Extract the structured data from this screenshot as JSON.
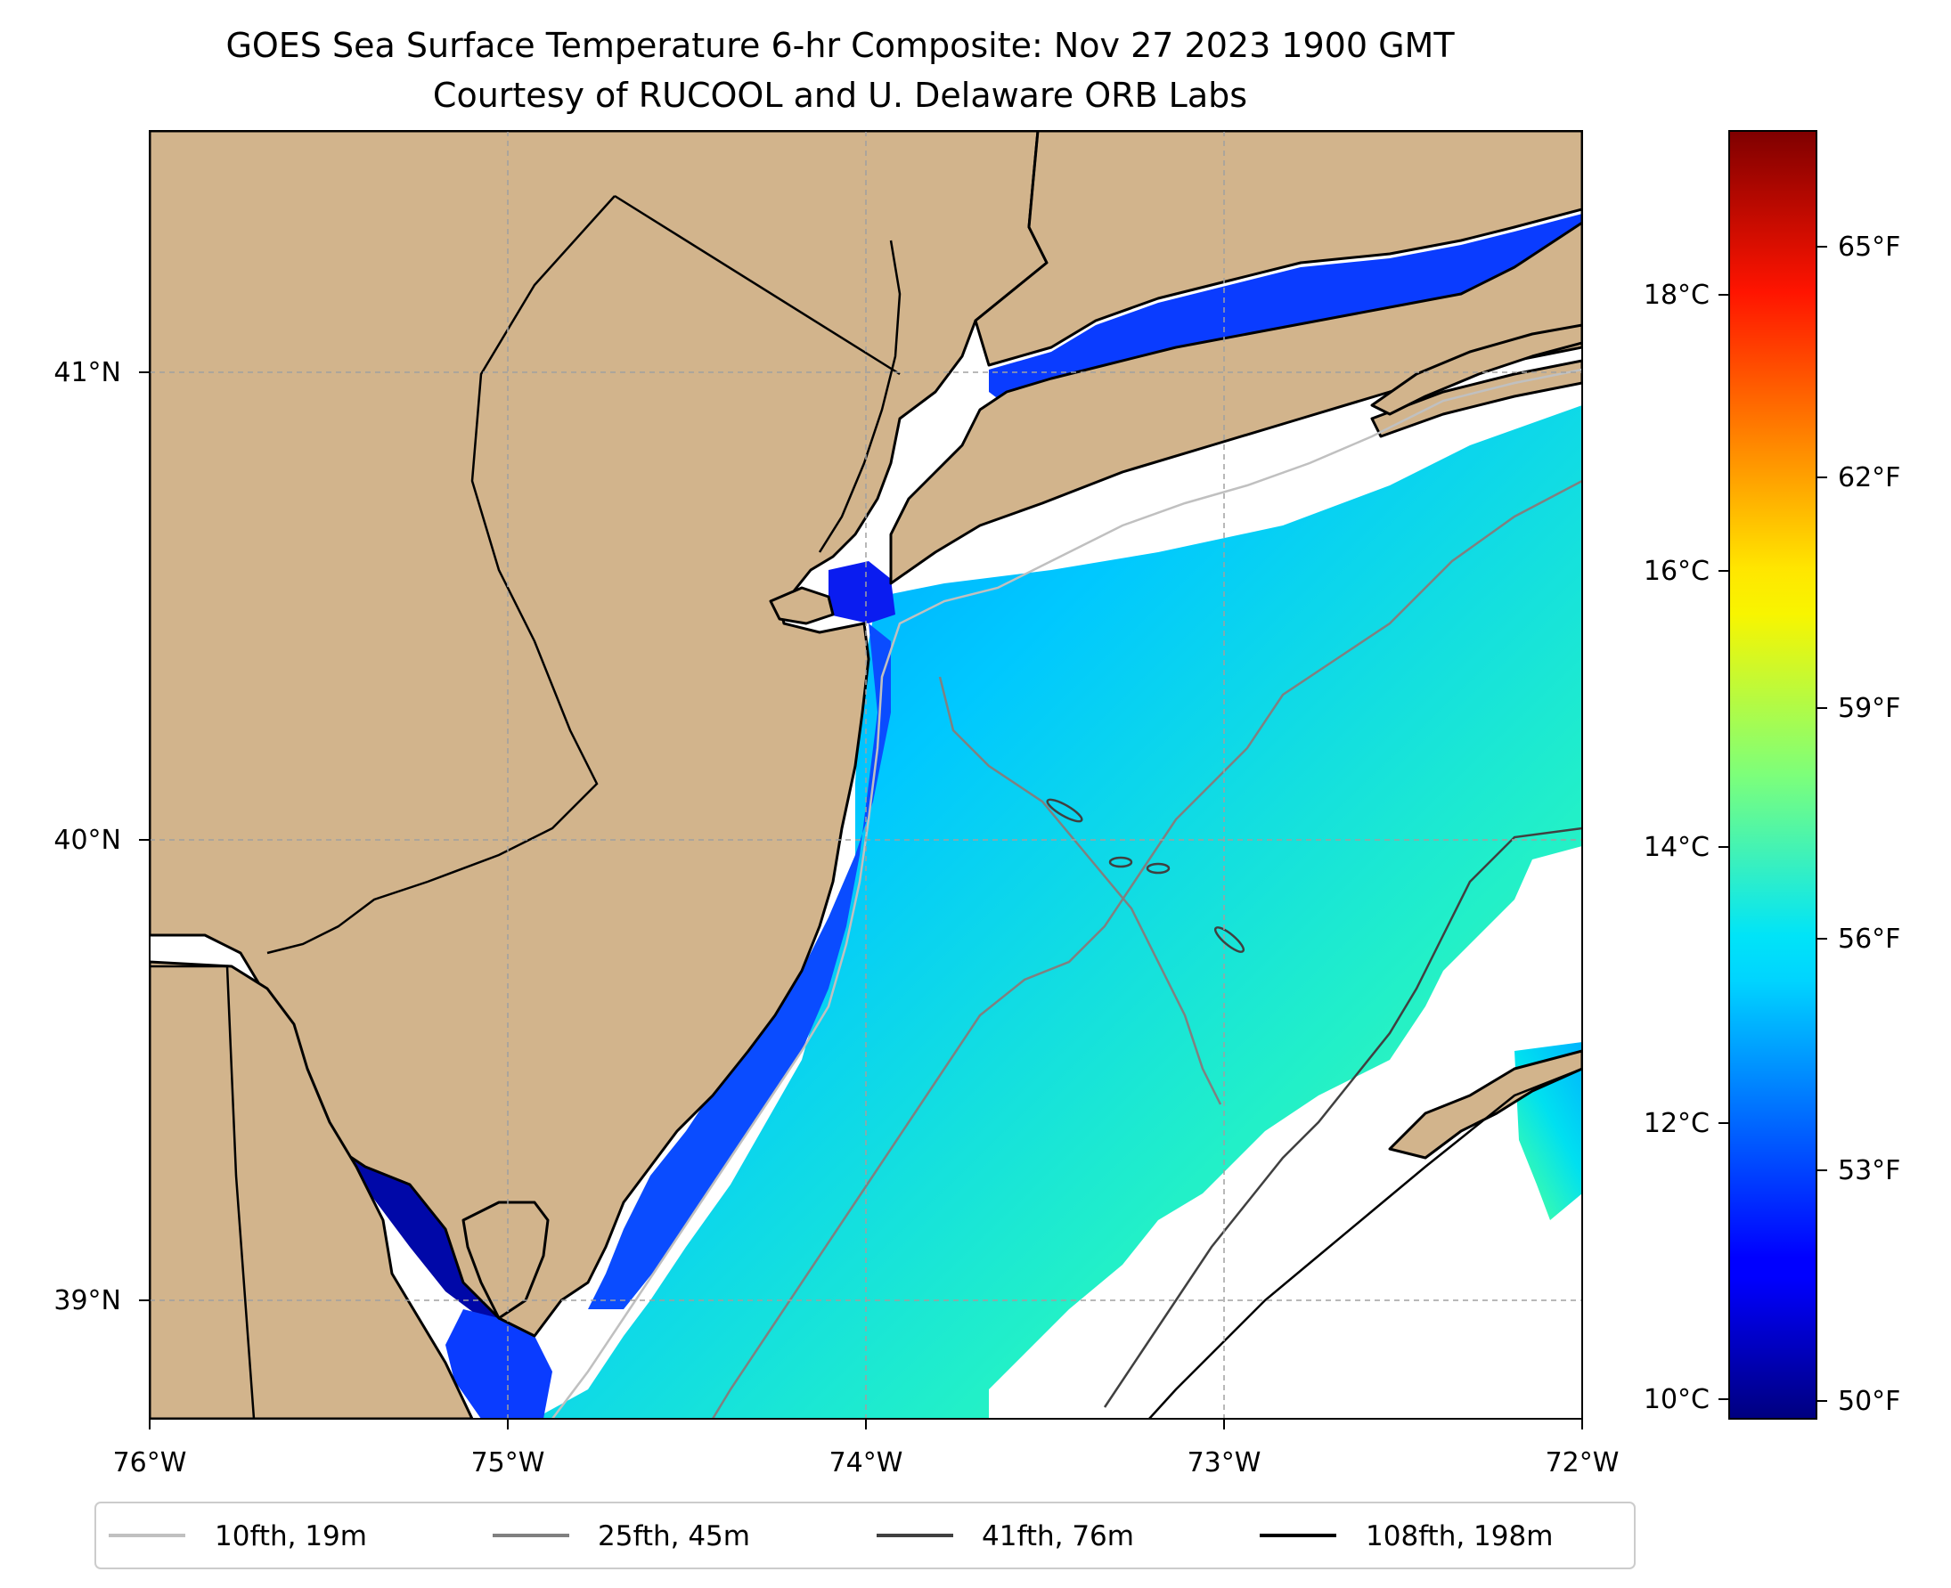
{
  "title": {
    "line1": "GOES Sea Surface Temperature 6-hr Composite: Nov 27 2023 1900 GMT",
    "line2": "Courtesy of RUCOOL and U. Delaware ORB Labs"
  },
  "map": {
    "lon_range": [
      -76,
      -72
    ],
    "lat_range": [
      38.75,
      41.5
    ],
    "x_ticks": [
      "76°W",
      "75°W",
      "74°W",
      "73°W",
      "72°W"
    ],
    "y_ticks": [
      "39°N",
      "40°N",
      "41°N"
    ],
    "land_color": "#d2b48c",
    "gridlines": true
  },
  "colorbar": {
    "colormap": "jet",
    "celsius_ticks": [
      "10°C",
      "12°C",
      "14°C",
      "16°C",
      "18°C"
    ],
    "fahrenheit_ticks": [
      "50°F",
      "53°F",
      "56°F",
      "59°F",
      "62°F",
      "65°F"
    ],
    "range_celsius": [
      9.7,
      19.2
    ],
    "range_fahrenheit": [
      49.5,
      66.5
    ]
  },
  "legend": {
    "placement": "bottom-center",
    "items": [
      {
        "label": "10fth, 19m",
        "color": "#c0c0c0"
      },
      {
        "label": "25fth, 45m",
        "color": "#808080"
      },
      {
        "label": "41fth, 76m",
        "color": "#404040"
      },
      {
        "label": "108fth, 198m",
        "color": "#000000"
      }
    ]
  }
}
